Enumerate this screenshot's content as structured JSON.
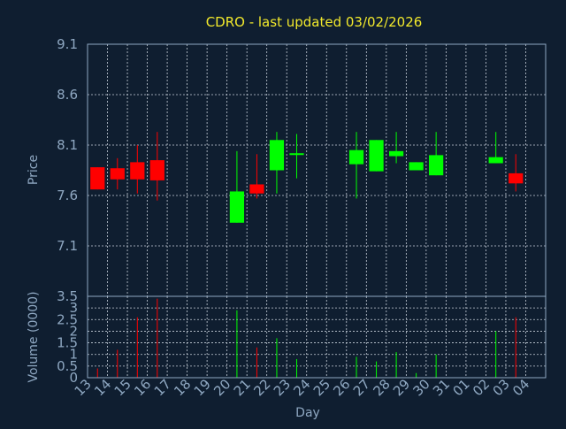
{
  "chart_data": [
    {
      "type": "candlestick",
      "title": "CDRO - last updated 03/02/2026",
      "ylabel": "Price",
      "ylim": [
        6.6,
        9.1
      ],
      "yticks": [
        "7.1",
        "7.6",
        "8.1",
        "8.6",
        "9.1"
      ],
      "grid": true,
      "colors": {
        "up": "#00ff00",
        "down": "#ff0000",
        "neutral": "#ffffff",
        "grid": "#c8d0da"
      },
      "x": [
        "13",
        "14",
        "15",
        "16",
        "17",
        "18",
        "19",
        "20",
        "21",
        "22",
        "23",
        "24",
        "25",
        "26",
        "27",
        "28",
        "29",
        "30",
        "31",
        "01",
        "02",
        "03",
        "04"
      ],
      "candles": [
        {
          "x": "13",
          "open": 7.88,
          "high": 7.88,
          "low": 7.66,
          "close": 7.66
        },
        {
          "x": "14",
          "open": 7.87,
          "high": 7.97,
          "low": 7.66,
          "close": 7.76
        },
        {
          "x": "15",
          "open": 7.93,
          "high": 8.1,
          "low": 7.62,
          "close": 7.76
        },
        {
          "x": "16",
          "open": 7.95,
          "high": 8.23,
          "low": 7.55,
          "close": 7.75
        },
        {
          "x": "20",
          "open": 7.33,
          "high": 8.04,
          "low": 7.33,
          "close": 7.64
        },
        {
          "x": "21",
          "open": 7.71,
          "high": 8.01,
          "low": 7.57,
          "close": 7.62
        },
        {
          "x": "22",
          "open": 7.85,
          "high": 8.23,
          "low": 7.62,
          "close": 8.15
        },
        {
          "x": "23",
          "open": 8.0,
          "high": 8.21,
          "low": 7.77,
          "close": 8.01
        },
        {
          "x": "26",
          "open": 7.91,
          "high": 8.23,
          "low": 7.57,
          "close": 8.05
        },
        {
          "x": "27",
          "open": 7.84,
          "high": 8.15,
          "low": 7.84,
          "close": 8.15
        },
        {
          "x": "28",
          "open": 7.99,
          "high": 8.23,
          "low": 7.92,
          "close": 8.04
        },
        {
          "x": "29",
          "open": 7.85,
          "high": 7.93,
          "low": 7.85,
          "close": 7.93
        },
        {
          "x": "30",
          "open": 7.8,
          "high": 8.23,
          "low": 7.8,
          "close": 8.0
        },
        {
          "x": "02",
          "open": 7.92,
          "high": 8.23,
          "low": 7.92,
          "close": 7.98
        },
        {
          "x": "03",
          "open": 7.82,
          "high": 8.01,
          "low": 7.64,
          "close": 7.72
        }
      ]
    },
    {
      "type": "bar",
      "xlabel": "Day",
      "ylabel": "Volume (0000)",
      "ylim": [
        0,
        3.5
      ],
      "yticks": [
        "0",
        "0.5",
        "1",
        "1.5",
        "2",
        "2.5",
        "3",
        "3.5"
      ],
      "grid": true,
      "categories": [
        "13",
        "14",
        "15",
        "16",
        "17",
        "18",
        "19",
        "20",
        "21",
        "22",
        "23",
        "24",
        "25",
        "26",
        "27",
        "28",
        "29",
        "30",
        "31",
        "01",
        "02",
        "03",
        "04"
      ],
      "bars": [
        {
          "x": "13",
          "value": 0.4,
          "color": "#ff0000"
        },
        {
          "x": "14",
          "value": 1.2,
          "color": "#ff0000"
        },
        {
          "x": "15",
          "value": 2.6,
          "color": "#ff0000"
        },
        {
          "x": "16",
          "value": 3.4,
          "color": "#ff0000"
        },
        {
          "x": "20",
          "value": 2.9,
          "color": "#00ff00"
        },
        {
          "x": "21",
          "value": 1.3,
          "color": "#ff0000"
        },
        {
          "x": "22",
          "value": 1.7,
          "color": "#00ff00"
        },
        {
          "x": "23",
          "value": 0.8,
          "color": "#00ff00"
        },
        {
          "x": "26",
          "value": 0.9,
          "color": "#00ff00"
        },
        {
          "x": "27",
          "value": 0.7,
          "color": "#00ff00"
        },
        {
          "x": "28",
          "value": 1.1,
          "color": "#00ff00"
        },
        {
          "x": "29",
          "value": 0.2,
          "color": "#00ff00"
        },
        {
          "x": "30",
          "value": 1.0,
          "color": "#00ff00"
        },
        {
          "x": "02",
          "value": 2.0,
          "color": "#00ff00"
        },
        {
          "x": "03",
          "value": 2.6,
          "color": "#ff0000"
        }
      ]
    }
  ]
}
